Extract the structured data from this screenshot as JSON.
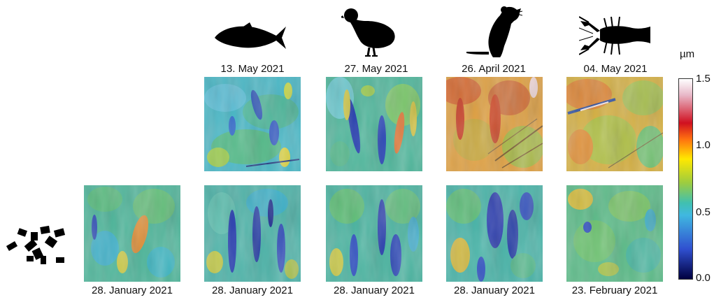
{
  "figure": {
    "top_labels": [
      "13. May 2021",
      "27. May 2021",
      "26. April 2021",
      "04. May 2021"
    ],
    "bottom_labels": [
      "28. January 2021",
      "28. January 2021",
      "28. January 2021",
      "28. January 2021",
      "23. February 2021"
    ],
    "icons": [
      "fish-icon",
      "bird-icon",
      "rat-icon",
      "crayfish-icon",
      "pellets-icon"
    ],
    "colorbar": {
      "unit": "µm",
      "ticks": [
        "1.5",
        "1.0",
        "0.5",
        "0.0"
      ],
      "colors": [
        "#ffffff",
        "#d01020",
        "#ff7010",
        "#ffe800",
        "#50c878",
        "#40b8e0",
        "#3050d0",
        "#000040"
      ]
    },
    "tiles": {
      "top": [
        {
          "tone": "cool"
        },
        {
          "tone": "mixed"
        },
        {
          "tone": "warm"
        },
        {
          "tone": "warm-green"
        }
      ],
      "bottom": [
        {
          "tone": "green"
        },
        {
          "tone": "cool-blue"
        },
        {
          "tone": "cool"
        },
        {
          "tone": "cool-blue"
        },
        {
          "tone": "green"
        }
      ]
    }
  }
}
